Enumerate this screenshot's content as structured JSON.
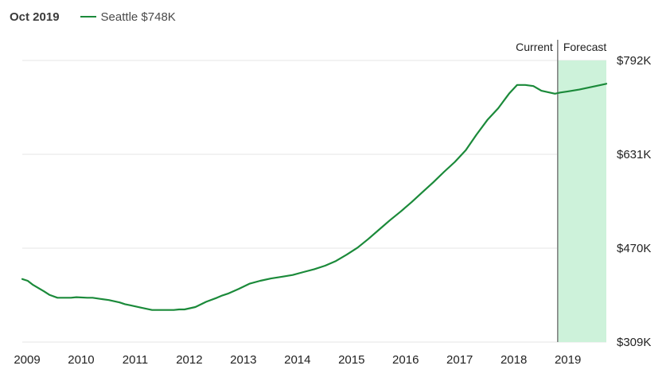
{
  "header": {
    "date": "Oct 2019",
    "legend_label": "Seattle $748K"
  },
  "chart_data": {
    "type": "line",
    "series": [
      {
        "name": "Seattle",
        "color": "#1b8a3a",
        "x": [
          2009.0,
          2009.1,
          2009.2,
          2009.4,
          2009.5,
          2009.65,
          2009.8,
          2009.9,
          2010.0,
          2010.2,
          2010.3,
          2010.45,
          2010.6,
          2010.8,
          2010.9,
          2011.0,
          2011.2,
          2011.4,
          2011.6,
          2011.8,
          2011.9,
          2012.0,
          2012.2,
          2012.4,
          2012.6,
          2012.7,
          2012.8,
          2012.9,
          2013.0,
          2013.2,
          2013.4,
          2013.6,
          2013.8,
          2014.0,
          2014.2,
          2014.4,
          2014.6,
          2014.8,
          2015.0,
          2015.2,
          2015.4,
          2015.6,
          2015.8,
          2016.0,
          2016.2,
          2016.4,
          2016.6,
          2016.8,
          2017.0,
          2017.2,
          2017.4,
          2017.6,
          2017.8,
          2018.0,
          2018.15,
          2018.3,
          2018.45,
          2018.6,
          2018.75,
          2018.85,
          2018.95,
          2019.1,
          2019.3,
          2019.5,
          2019.7,
          2019.8
        ],
        "y": [
          417,
          414,
          407,
          396,
          390,
          385,
          385,
          385,
          386,
          385,
          385,
          383,
          381,
          377,
          374,
          372,
          368,
          364,
          364,
          364,
          365,
          365,
          369,
          378,
          385,
          389,
          392,
          396,
          400,
          409,
          414,
          418,
          421,
          424,
          429,
          434,
          440,
          448,
          459,
          471,
          486,
          502,
          518,
          533,
          549,
          566,
          583,
          601,
          618,
          638,
          665,
          690,
          710,
          735,
          750,
          750,
          748,
          740,
          737,
          735,
          737,
          739,
          742,
          746,
          750,
          752
        ]
      }
    ],
    "forecast_start": 2018.9,
    "xlim": [
      2009.0,
      2019.8
    ],
    "ylim": [
      309,
      792
    ],
    "x_ticks": [
      "2009",
      "2010",
      "2011",
      "2012",
      "2013",
      "2014",
      "2015",
      "2016",
      "2017",
      "2018",
      "2019"
    ],
    "y_ticks": [
      "$792K",
      "$631K",
      "$470K",
      "$309K"
    ],
    "annotations": {
      "current": "Current",
      "forecast": "Forecast"
    },
    "grid": true,
    "forecast_fill": "#cdf2da"
  }
}
